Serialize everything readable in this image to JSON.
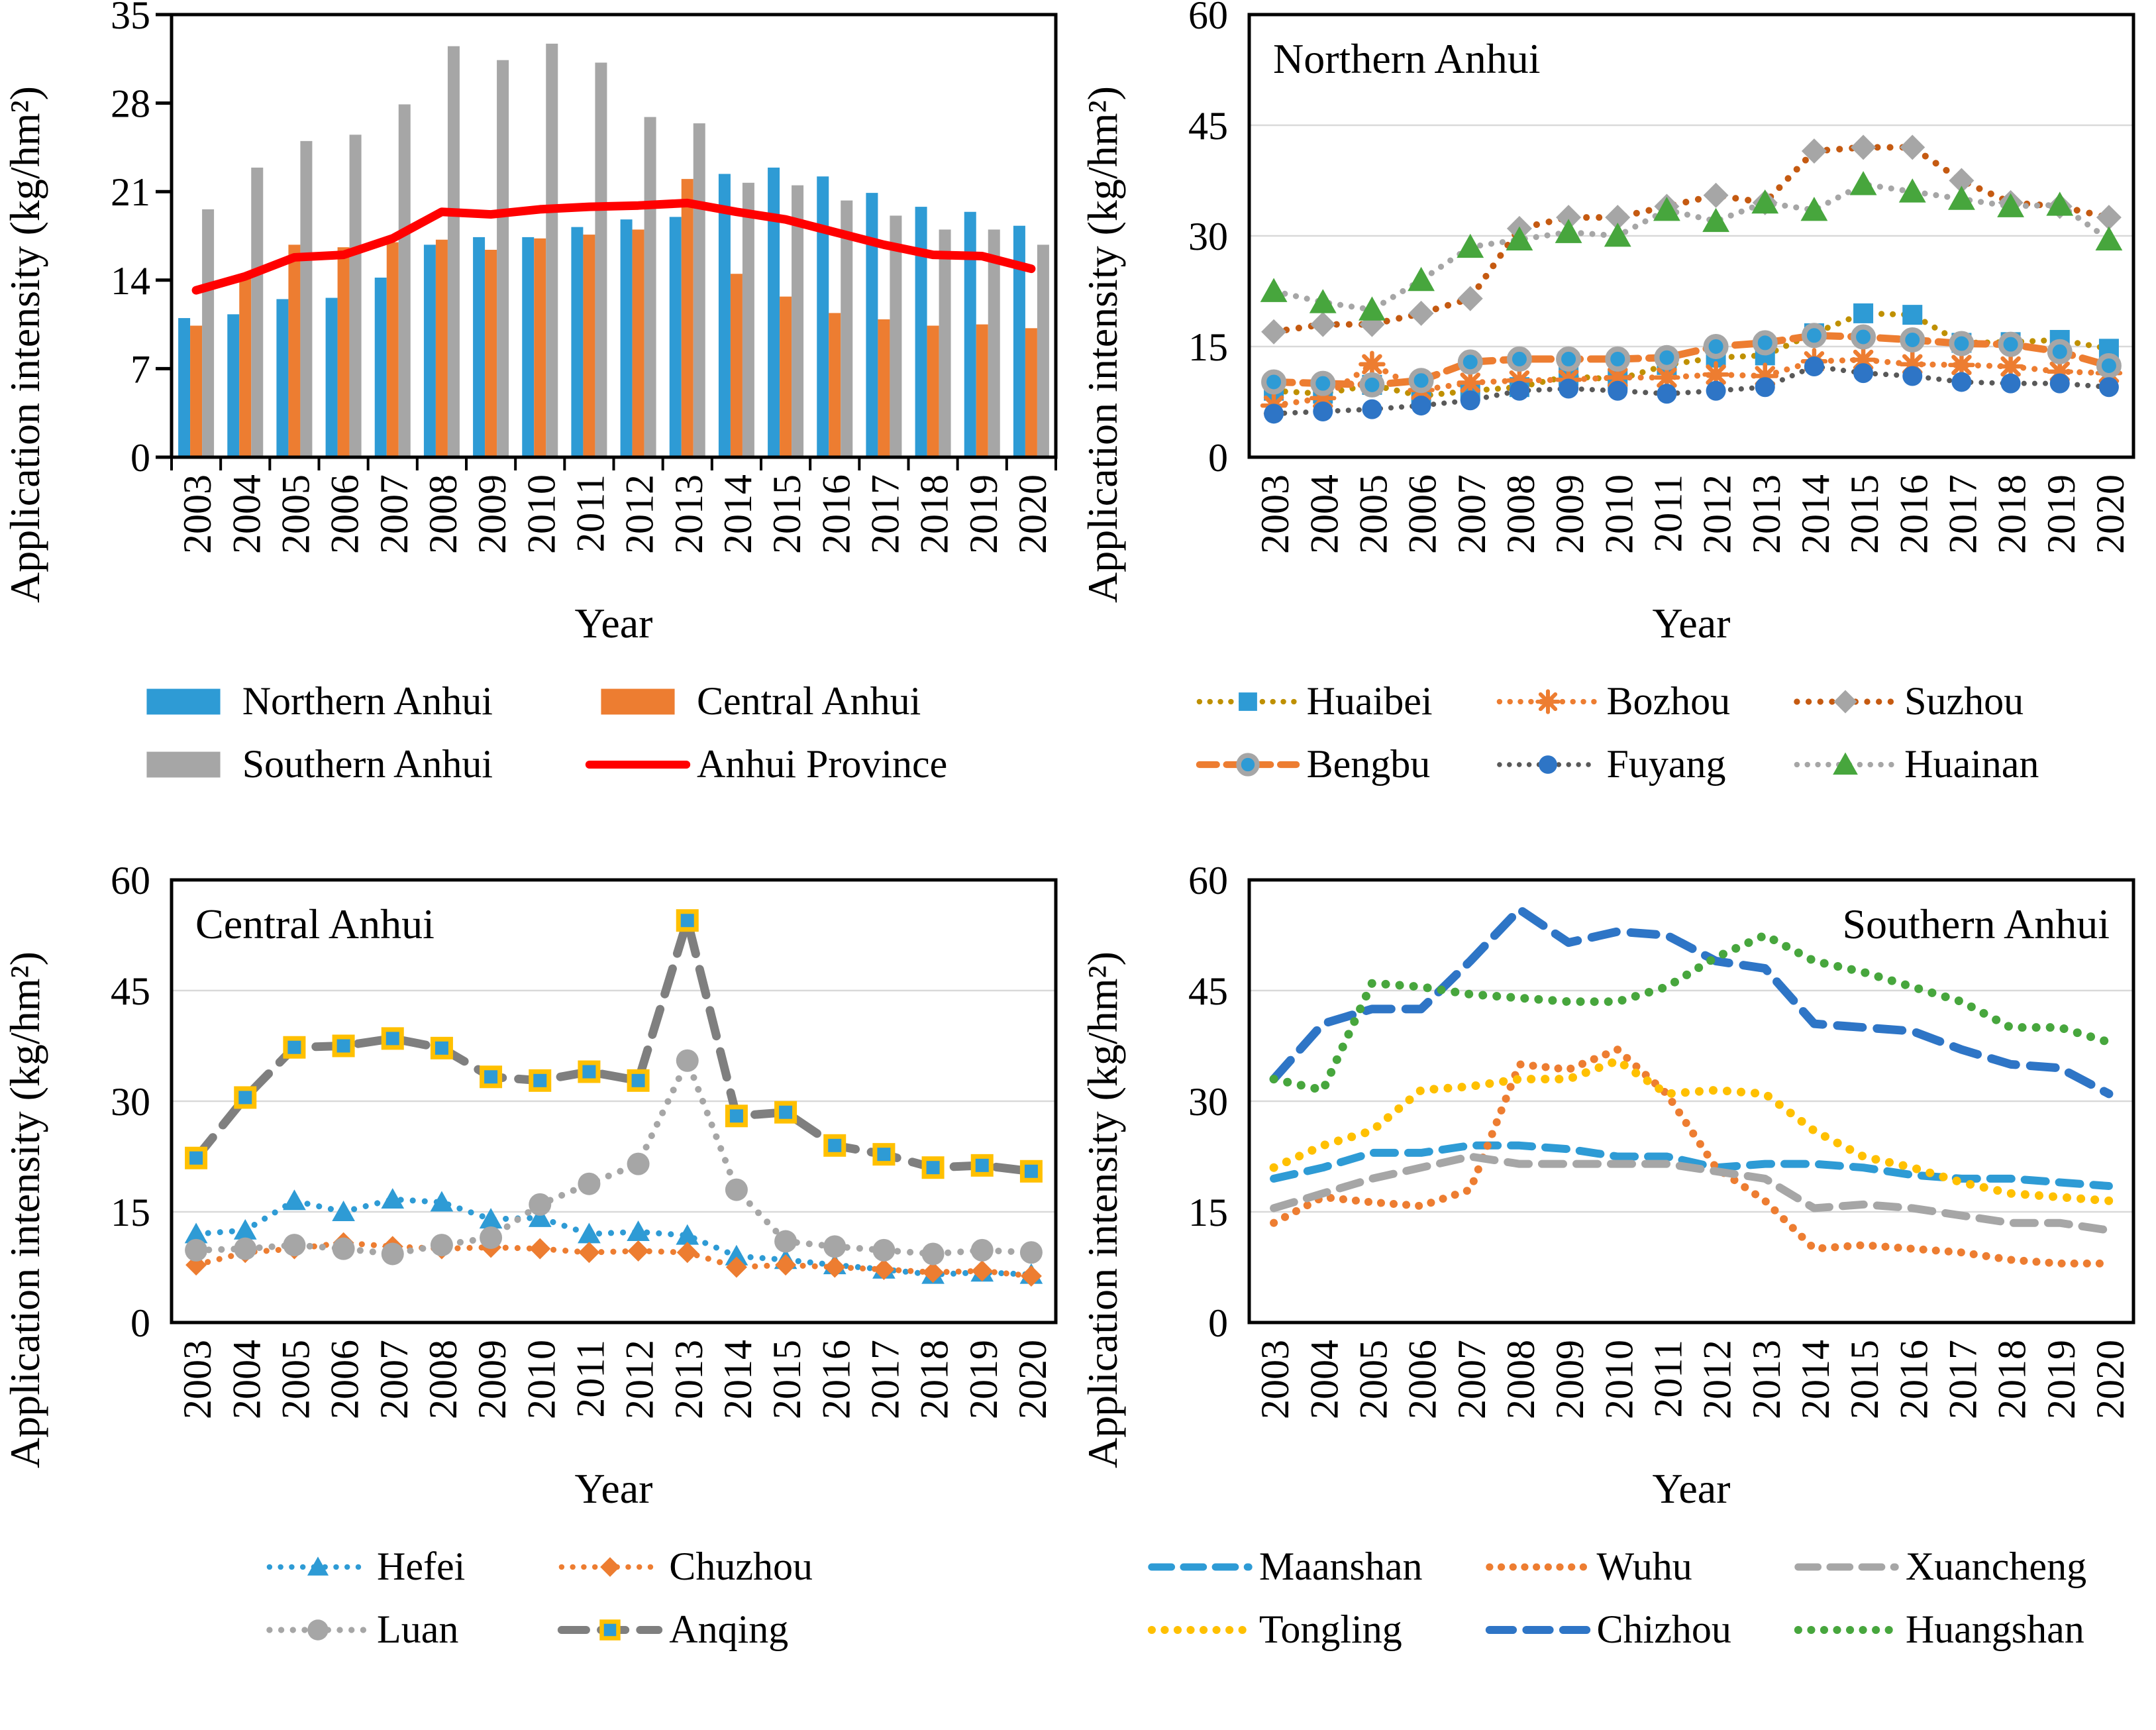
{
  "figure_background": "#FFFFFF",
  "chart_data": [
    {
      "id": "province",
      "type": "bar",
      "inner_title": "",
      "title_pos": "left",
      "ylabel": "Application intensity  (kg/hm²)",
      "xlabel": "Year",
      "ylim": [
        0,
        35
      ],
      "yticks": [
        0,
        7,
        14,
        21,
        28,
        35
      ],
      "grid": false,
      "axis_ticks": true,
      "legend_cols": 2,
      "categories": [
        "2003",
        "2004",
        "2005",
        "2006",
        "2007",
        "2008",
        "2009",
        "2010",
        "2011",
        "2012",
        "2013",
        "2014",
        "2015",
        "2016",
        "2017",
        "2018",
        "2019",
        "2020"
      ],
      "series": [
        {
          "name": "Northern Anhui",
          "kind": "bar",
          "color": "#2E9BD5",
          "values": [
            11.0,
            11.3,
            12.5,
            12.6,
            14.2,
            16.8,
            17.4,
            17.4,
            18.2,
            18.8,
            19.0,
            22.4,
            22.9,
            22.2,
            20.9,
            19.8,
            19.4,
            18.3
          ]
        },
        {
          "name": "Central Anhui",
          "kind": "bar",
          "color": "#ED7D31",
          "values": [
            10.4,
            14.3,
            16.8,
            16.6,
            17.0,
            17.2,
            16.4,
            17.3,
            17.6,
            18.0,
            22.0,
            14.5,
            12.7,
            11.4,
            10.9,
            10.4,
            10.5,
            10.2
          ]
        },
        {
          "name": "Southern Anhui",
          "kind": "bar",
          "color": "#A6A6A6",
          "values": [
            19.6,
            22.9,
            25.0,
            25.5,
            27.9,
            32.5,
            31.4,
            32.7,
            31.2,
            26.9,
            26.4,
            21.7,
            21.5,
            20.3,
            19.1,
            18.0,
            18.0,
            16.8
          ]
        },
        {
          "name": "Anhui Province",
          "kind": "line",
          "line": {
            "color": "#FF0000",
            "width": 13,
            "cap": "round"
          },
          "values": [
            13.2,
            14.3,
            15.8,
            16.0,
            17.3,
            19.4,
            19.2,
            19.6,
            19.8,
            19.9,
            20.1,
            19.4,
            18.8,
            17.8,
            16.8,
            16.0,
            15.9,
            14.9
          ]
        }
      ]
    },
    {
      "id": "northern",
      "type": "line",
      "inner_title": "Northern Anhui",
      "title_pos": "left",
      "ylabel": "Application intensity  (kg/hm²)",
      "xlabel": "Year",
      "ylim": [
        0,
        60
      ],
      "yticks": [
        0,
        15,
        30,
        45,
        60
      ],
      "grid": true,
      "axis_ticks": false,
      "legend_cols": 3,
      "categories": [
        "2003",
        "2004",
        "2005",
        "2006",
        "2007",
        "2008",
        "2009",
        "2010",
        "2011",
        "2012",
        "2013",
        "2014",
        "2015",
        "2016",
        "2017",
        "2018",
        "2019",
        "2020"
      ],
      "series": [
        {
          "name": "Huaibei",
          "kind": "line",
          "line": {
            "color": "#BF9000",
            "dash": "0.1 17",
            "width": 9,
            "cap": "round"
          },
          "marker": {
            "shape": "square",
            "fill": "#2E9BD5",
            "size": 30
          },
          "values": [
            9.0,
            8.6,
            9.8,
            8.3,
            9.0,
            9.5,
            11.0,
            10.5,
            12.5,
            13.5,
            13.8,
            16.8,
            19.5,
            19.3,
            15.5,
            15.6,
            15.9,
            14.7
          ]
        },
        {
          "name": "Bozhou",
          "kind": "line",
          "line": {
            "color": "#ED7D31",
            "dash": "0.1 17",
            "width": 9,
            "cap": "round"
          },
          "marker": {
            "shape": "star",
            "fill": "#ED7D31",
            "size": 34
          },
          "values": [
            7.0,
            8.0,
            12.6,
            9.1,
            10.1,
            10.4,
            10.5,
            10.8,
            10.8,
            11.2,
            11.0,
            13.0,
            13.2,
            12.6,
            12.5,
            12.3,
            11.6,
            11.4
          ]
        },
        {
          "name": "Suzhou",
          "kind": "line",
          "line": {
            "color": "#C55A11",
            "dash": "0.1 19",
            "width": 10,
            "cap": "round"
          },
          "marker": {
            "shape": "diamond",
            "fill": "#A6A6A6",
            "size": 38
          },
          "values": [
            17.0,
            18.0,
            18.0,
            19.5,
            21.5,
            31.0,
            32.5,
            32.5,
            34.0,
            35.5,
            34.5,
            41.5,
            42.0,
            42.0,
            37.5,
            34.5,
            34.0,
            32.5
          ]
        },
        {
          "name": "Bengbu",
          "kind": "line",
          "line": {
            "color": "#ED7D31",
            "dash": "28 16",
            "width": 11,
            "cap": "round"
          },
          "marker": {
            "shape": "circle",
            "fill": "#2E9BD5",
            "stroke": "#A6A6A6",
            "sw": 8,
            "size": 30
          },
          "values": [
            10.2,
            10.0,
            9.8,
            10.4,
            12.9,
            13.3,
            13.3,
            13.3,
            13.5,
            15.0,
            15.5,
            16.5,
            16.3,
            15.9,
            15.4,
            15.3,
            14.3,
            12.4
          ]
        },
        {
          "name": "Fuyang",
          "kind": "line",
          "line": {
            "color": "#595959",
            "dash": "0.1 16",
            "width": 8,
            "cap": "round"
          },
          "marker": {
            "shape": "circle",
            "fill": "#2E75C6",
            "size": 30
          },
          "values": [
            5.9,
            6.2,
            6.5,
            7.0,
            7.7,
            9.0,
            9.3,
            9.0,
            8.6,
            9.0,
            9.5,
            12.3,
            11.4,
            11.0,
            10.2,
            10.0,
            10.0,
            9.5
          ]
        },
        {
          "name": "Huainan",
          "kind": "line",
          "line": {
            "color": "#A6A6A6",
            "dash": "0.1 17",
            "width": 9,
            "cap": "round"
          },
          "marker": {
            "shape": "triangle",
            "fill": "#47A63D",
            "size": 40
          },
          "values": [
            22.5,
            21.0,
            20.0,
            24.0,
            28.5,
            29.5,
            30.5,
            30.0,
            33.5,
            32.0,
            34.5,
            33.5,
            37.0,
            36.0,
            35.0,
            34.0,
            34.2,
            29.5
          ]
        }
      ]
    },
    {
      "id": "central",
      "type": "line",
      "inner_title": "Central Anhui",
      "title_pos": "left",
      "ylabel": "Application intensity  (kg/hm²)",
      "xlabel": "Year",
      "ylim": [
        0,
        60
      ],
      "yticks": [
        0,
        15,
        30,
        45,
        60
      ],
      "grid": true,
      "axis_ticks": false,
      "legend_cols": 2,
      "categories": [
        "2003",
        "2004",
        "2005",
        "2006",
        "2007",
        "2008",
        "2009",
        "2010",
        "2011",
        "2012",
        "2013",
        "2014",
        "2015",
        "2016",
        "2017",
        "2018",
        "2019",
        "2020"
      ],
      "series": [
        {
          "name": "Hefei",
          "kind": "line",
          "line": {
            "color": "#2E9BD5",
            "dash": "0.1 18",
            "width": 9,
            "cap": "round"
          },
          "marker": {
            "shape": "triangle",
            "fill": "#2E9BD5",
            "size": 34
          },
          "values": [
            12.0,
            12.5,
            16.5,
            15.0,
            16.7,
            16.3,
            14.0,
            14.2,
            12.0,
            12.3,
            11.8,
            9.0,
            8.5,
            7.8,
            7.2,
            6.5,
            6.8,
            6.5
          ]
        },
        {
          "name": "Chuzhou",
          "kind": "line",
          "line": {
            "color": "#ED7D31",
            "dash": "0.1 18",
            "width": 9,
            "cap": "round"
          },
          "marker": {
            "shape": "diamond",
            "fill": "#ED7D31",
            "size": 32
          },
          "values": [
            7.8,
            9.5,
            10.0,
            10.8,
            10.3,
            10.0,
            10.2,
            10.0,
            9.5,
            9.7,
            9.5,
            7.5,
            7.8,
            7.5,
            7.2,
            6.8,
            7.0,
            6.3
          ]
        },
        {
          "name": "Luan",
          "kind": "line",
          "line": {
            "color": "#A6A6A6",
            "dash": "0.1 19",
            "width": 10,
            "cap": "round"
          },
          "marker": {
            "shape": "circle",
            "fill": "#A6A6A6",
            "size": 34
          },
          "values": [
            9.8,
            10.0,
            10.5,
            10.0,
            9.3,
            10.5,
            11.5,
            16.0,
            18.8,
            21.5,
            35.5,
            18.0,
            11.0,
            10.3,
            9.8,
            9.3,
            9.8,
            9.5
          ]
        },
        {
          "name": "Anqing",
          "kind": "line",
          "line": {
            "color": "#7F7F7F",
            "dash": "40 24",
            "width": 13,
            "cap": "round"
          },
          "marker": {
            "shape": "square",
            "fill": "#2E9BD5",
            "stroke": "#FFC000",
            "sw": 7,
            "size": 27
          },
          "values": [
            22.3,
            30.5,
            37.3,
            37.5,
            38.5,
            37.2,
            33.3,
            32.8,
            34.0,
            32.8,
            54.5,
            28.0,
            28.5,
            24.0,
            22.8,
            21.0,
            21.3,
            20.5
          ]
        }
      ]
    },
    {
      "id": "southern",
      "type": "line",
      "inner_title": "Southern Anhui",
      "title_pos": "right",
      "ylabel": "Application intensity  (kg/hm²)",
      "xlabel": "Year",
      "ylim": [
        0,
        60
      ],
      "yticks": [
        0,
        15,
        30,
        45,
        60
      ],
      "grid": true,
      "axis_ticks": false,
      "legend_cols": 3,
      "categories": [
        "2003",
        "2004",
        "2005",
        "2006",
        "2007",
        "2008",
        "2009",
        "2010",
        "2011",
        "2012",
        "2013",
        "2014",
        "2015",
        "2016",
        "2017",
        "2018",
        "2019",
        "2020"
      ],
      "series": [
        {
          "name": "Maanshan",
          "kind": "line",
          "line": {
            "color": "#2E9BD5",
            "dash": "32 20",
            "width": 12,
            "cap": "round"
          },
          "values": [
            19.5,
            21.0,
            23.0,
            23.0,
            24.0,
            24.0,
            23.5,
            22.5,
            22.5,
            21.0,
            21.5,
            21.5,
            21.0,
            20.0,
            19.5,
            19.5,
            19.0,
            18.5
          ]
        },
        {
          "name": "Wuhu",
          "kind": "line",
          "line": {
            "color": "#ED7D31",
            "dash": "0.1 19",
            "width": 12,
            "cap": "round"
          },
          "values": [
            13.5,
            17.0,
            16.3,
            15.8,
            18.0,
            35.0,
            34.3,
            37.0,
            31.0,
            21.0,
            16.5,
            10.0,
            10.5,
            10.0,
            9.5,
            8.5,
            8.0,
            8.0
          ]
        },
        {
          "name": "Xuancheng",
          "kind": "line",
          "line": {
            "color": "#A6A6A6",
            "dash": "32 20",
            "width": 12,
            "cap": "round"
          },
          "values": [
            15.5,
            17.5,
            19.5,
            21.0,
            22.5,
            21.5,
            21.5,
            21.5,
            21.5,
            20.5,
            19.5,
            15.5,
            16.0,
            15.5,
            14.5,
            13.5,
            13.5,
            12.5
          ]
        },
        {
          "name": "Tongling",
          "kind": "line",
          "line": {
            "color": "#FFC000",
            "dash": "0.1 21",
            "width": 13,
            "cap": "round"
          },
          "values": [
            21.0,
            24.0,
            26.0,
            31.5,
            32.0,
            33.0,
            33.0,
            35.5,
            31.0,
            31.5,
            31.0,
            26.0,
            22.5,
            21.0,
            19.0,
            17.5,
            17.0,
            16.5
          ]
        },
        {
          "name": "Chizhou",
          "kind": "line",
          "line": {
            "color": "#2E75C6",
            "dash": "38 22",
            "width": 13,
            "cap": "round"
          },
          "values": [
            33.0,
            40.5,
            42.5,
            42.5,
            49.0,
            56.0,
            51.5,
            53.0,
            52.5,
            49.0,
            48.0,
            40.5,
            40.0,
            39.5,
            37.0,
            35.0,
            34.5,
            31.0
          ]
        },
        {
          "name": "Huangshan",
          "kind": "line",
          "line": {
            "color": "#47A63D",
            "dash": "0.1 21",
            "width": 13,
            "cap": "round"
          },
          "values": [
            33.0,
            31.5,
            46.0,
            45.5,
            44.5,
            44.0,
            43.5,
            43.5,
            45.5,
            49.5,
            52.5,
            49.0,
            47.5,
            45.5,
            43.5,
            40.0,
            40.0,
            38.0
          ]
        }
      ]
    }
  ]
}
